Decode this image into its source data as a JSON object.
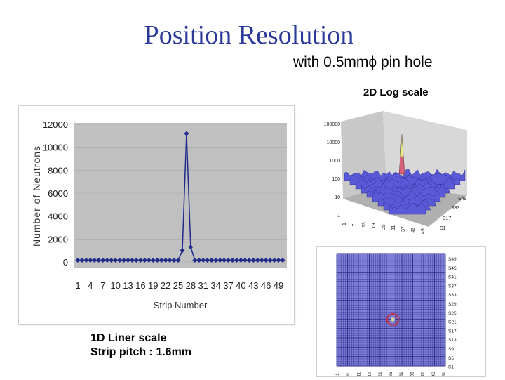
{
  "slide": {
    "title": "Position Resolution",
    "subtitle": "with 0.5mmϕ pin hole",
    "label_2d": "2D Log scale",
    "caption_line1": "1D Liner scale",
    "caption_line2": "Strip pitch : 1.6mm"
  },
  "chart_data": [
    {
      "type": "line",
      "title": "",
      "xlabel": "Strip Number",
      "ylabel": "Number of Neutrons",
      "ylim": [
        0,
        12000
      ],
      "yticks": [
        0,
        2000,
        4000,
        6000,
        8000,
        10000,
        12000
      ],
      "xticks": [
        1,
        4,
        7,
        10,
        13,
        16,
        19,
        22,
        25,
        28,
        31,
        34,
        37,
        40,
        43,
        46,
        49
      ],
      "x": [
        1,
        2,
        3,
        4,
        5,
        6,
        7,
        8,
        9,
        10,
        11,
        12,
        13,
        14,
        15,
        16,
        17,
        18,
        19,
        20,
        21,
        22,
        23,
        24,
        25,
        26,
        27,
        28,
        29,
        30,
        31,
        32,
        33,
        34,
        35,
        36,
        37,
        38,
        39,
        40,
        41,
        42,
        43,
        44,
        45,
        46,
        47,
        48,
        49,
        50
      ],
      "series": [
        {
          "values": [
            150,
            150,
            150,
            150,
            150,
            150,
            150,
            150,
            150,
            150,
            150,
            150,
            150,
            150,
            150,
            150,
            150,
            150,
            150,
            150,
            150,
            150,
            150,
            150,
            150,
            1000,
            11200,
            1300,
            150,
            150,
            150,
            150,
            150,
            150,
            150,
            150,
            150,
            150,
            150,
            150,
            150,
            150,
            150,
            150,
            150,
            150,
            150,
            150,
            150,
            150
          ]
        }
      ],
      "plot_background": "#c0c0c0",
      "line_color": "#1f2a8a",
      "grid": true,
      "legend": false
    },
    {
      "type": "surface3d",
      "title": "",
      "scale": "log",
      "z_ticks": [
        "100000",
        "10000",
        "1000",
        "100",
        "10",
        "1"
      ],
      "x_ticks": [
        "1",
        "7",
        "13",
        "19",
        "25",
        "31",
        "37",
        "43",
        "49"
      ],
      "y_ticks": [
        "S49",
        "S33",
        "S17",
        "S1"
      ],
      "surface_color": "#5a5ad8",
      "peak_color": "#d4607a"
    },
    {
      "type": "heatmap",
      "title": "",
      "x_ticks": [
        "1",
        "6",
        "11",
        "16",
        "21",
        "26",
        "31",
        "36",
        "41",
        "46",
        "51"
      ],
      "y_ticks": [
        "S49",
        "S45",
        "S41",
        "S37",
        "S33",
        "S29",
        "S25",
        "S21",
        "S17",
        "S13",
        "S9",
        "S5",
        "S1"
      ],
      "background_color": "#8080d8",
      "grid_color": "#2a2a8a",
      "peak_color": "#c03040"
    }
  ]
}
